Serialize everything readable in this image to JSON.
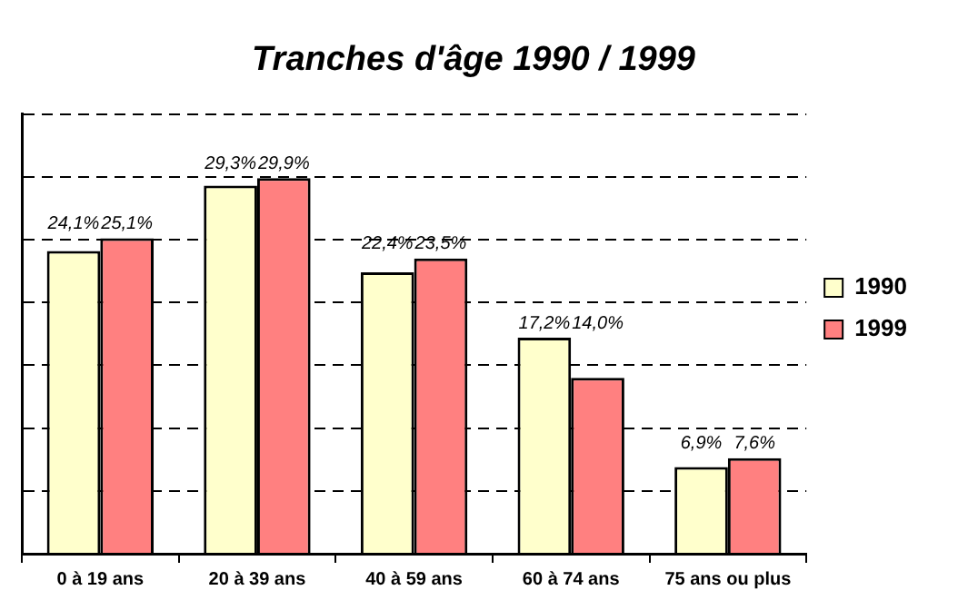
{
  "chart_data": {
    "type": "bar",
    "title": "Tranches d'âge 1990 / 1999",
    "categories": [
      "0 à 19 ans",
      "20 à 39 ans",
      "40 à 59 ans",
      "60 à 74 ans",
      "75 ans ou plus"
    ],
    "series": [
      {
        "name": "1990",
        "color": "#ffffcc",
        "values": [
          24.1,
          29.3,
          22.4,
          17.2,
          6.9
        ],
        "value_labels": [
          "24,1%",
          "29,3%",
          "22,4%",
          "17,2%",
          "6,9%"
        ]
      },
      {
        "name": "1999",
        "color": "#ff8080",
        "values": [
          25.1,
          29.9,
          23.5,
          14.0,
          7.6
        ],
        "value_labels": [
          "25,1%",
          "29,9%",
          "23,5%",
          "14,0%",
          "7,6%"
        ]
      }
    ],
    "ylim": [
      0,
      35
    ],
    "tick_labels": "x",
    "grid": "y",
    "legend": "right"
  }
}
